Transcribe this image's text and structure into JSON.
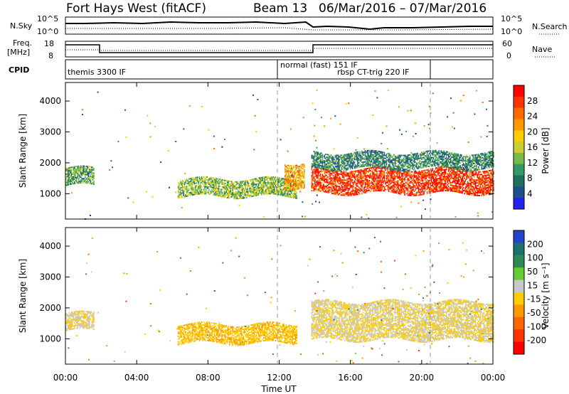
{
  "header": {
    "site": "Fort Hays West (fitACF)",
    "beam": "Beam 13",
    "dates": "06/Mar/2016 – 07/Mar/2016"
  },
  "summary": {
    "nsky_label": "N.Sky",
    "nsearch_label": "N.Search",
    "nsky_ticks": [
      "10^5",
      "10^0"
    ],
    "nsearch_ticks": [
      "10^5",
      "10^0"
    ],
    "freq_label_1": "Freq.",
    "freq_label_2": "[MHz]",
    "freq_ticks": [
      "18",
      "8"
    ],
    "nave_label": "Nave",
    "nave_ticks": [
      "60",
      "0"
    ],
    "cpid_label": "CPID",
    "modes": [
      {
        "text": "themis 3300 IF"
      },
      {
        "text": "normal (fast) 151 IF"
      },
      {
        "text": "rbsp CT-trig 220 IF"
      }
    ]
  },
  "axes": {
    "ylabel": "Slant Range [km]",
    "xlabel": "Time UT",
    "yticks": [
      "4000",
      "3000",
      "2000",
      "1000"
    ],
    "xticks": [
      "00:00",
      "04:00",
      "08:00",
      "12:00",
      "16:00",
      "20:00",
      "00:00"
    ]
  },
  "colorbars": {
    "power": {
      "label": "Power [dB]",
      "ticks": [
        "28",
        "24",
        "20",
        "16",
        "12",
        "8",
        "4"
      ],
      "colors": [
        "#ff0000",
        "#ff3300",
        "#ff6a00",
        "#ff9900",
        "#ffcc00",
        "#cccc33",
        "#77bb44",
        "#339966",
        "#1e6f5c",
        "#1d4f8a",
        "#2222ee"
      ]
    },
    "velocity": {
      "label": "Velocity [m s⁻¹]",
      "ticks": [
        "200",
        "100",
        "50",
        "15",
        "-15",
        "-50",
        "-100",
        "-200"
      ],
      "colors": [
        "#2244cc",
        "#1e6f6f",
        "#2e8b57",
        "#66cc33",
        "#c8c8c8",
        "#ffcc00",
        "#ff9900",
        "#ff6600",
        "#ff3300",
        "#ff0000"
      ]
    }
  },
  "chart_data": [
    {
      "type": "heatmap",
      "name": "Power",
      "xlabel": "Time UT",
      "ylabel": "Slant Range [km]",
      "xlim": [
        0,
        24
      ],
      "ylim": [
        180,
        4600
      ],
      "bands": [
        {
          "t0": 0.0,
          "t1": 1.6,
          "r_lo": 1250,
          "r_hi": 1800,
          "value": 12
        },
        {
          "t0": 6.3,
          "t1": 13.0,
          "r_lo": 900,
          "r_hi": 1450,
          "value": 14
        },
        {
          "t0": 12.3,
          "t1": 13.4,
          "r_lo": 1200,
          "r_hi": 2000,
          "value": 20
        },
        {
          "t0": 13.8,
          "t1": 24.0,
          "r_lo": 1000,
          "r_hi": 1800,
          "value": 26
        },
        {
          "t0": 13.8,
          "t1": 24.0,
          "r_lo": 1800,
          "r_hi": 2300,
          "value": 10
        }
      ]
    },
    {
      "type": "heatmap",
      "name": "Velocity",
      "xlabel": "Time UT",
      "ylabel": "Slant Range [km]",
      "xlim": [
        0,
        24
      ],
      "ylim": [
        180,
        4600
      ],
      "bands": [
        {
          "t0": 0.0,
          "t1": 1.6,
          "r_lo": 1250,
          "r_hi": 1800,
          "value": 0
        },
        {
          "t0": 6.3,
          "t1": 13.0,
          "r_lo": 850,
          "r_hi": 1450,
          "value": -40
        },
        {
          "t0": 13.8,
          "t1": 24.0,
          "r_lo": 950,
          "r_hi": 2200,
          "value": 0
        }
      ]
    }
  ]
}
